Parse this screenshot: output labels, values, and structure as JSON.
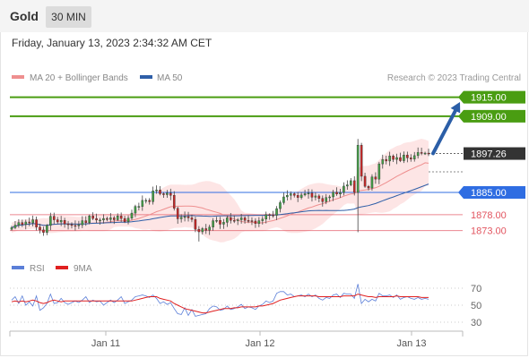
{
  "header": {
    "symbol": "Gold",
    "timeframe": "30 MIN",
    "datetime": "Friday, January 13, 2023 2:34:32 AM CET"
  },
  "legend": {
    "ma20_label": "MA 20 + Bollinger Bands",
    "ma50_label": "MA 50",
    "credit": "Research © 2023 Trading Central",
    "rsi_label": "RSI",
    "rsi_ma_label": "9MA"
  },
  "colors": {
    "target": "#4a9d12",
    "pivot": "#2f6de2",
    "support": "#e25560",
    "current": "#333333",
    "arrow": "#2b5ea7",
    "ma20": "#ee8f8f",
    "ma50": "#2f5fa8",
    "bands": "#fde0e0",
    "candle_up": "#43a047",
    "candle_down": "#c62828",
    "rsi": "#5b7fd8",
    "rsi_ma": "#e02020"
  },
  "chart_data": [
    {
      "type": "candlestick",
      "title": "",
      "ylim": [
        1869.5,
        1918
      ],
      "x_ticks": [
        "Jan 11",
        "Jan 12",
        "Jan 13"
      ],
      "price_levels": [
        {
          "label": "1915.00",
          "value": 1915.0,
          "kind": "target"
        },
        {
          "label": "1909.00",
          "value": 1909.0,
          "kind": "target"
        },
        {
          "label": "1897.26",
          "value": 1897.26,
          "kind": "current"
        },
        {
          "label": "1885.00",
          "value": 1885.0,
          "kind": "pivot"
        },
        {
          "label": "1878.00",
          "value": 1878.0,
          "kind": "support"
        },
        {
          "label": "1873.00",
          "value": 1873.0,
          "kind": "support"
        }
      ],
      "forecast_arrow": {
        "from": 1897.3,
        "to": 1913.5
      },
      "close": [
        1873.9,
        1874.7,
        1875.5,
        1874.9,
        1875.7,
        1875.4,
        1876.4,
        1874.1,
        1873.2,
        1872.4,
        1874.6,
        1877.5,
        1876.4,
        1875.7,
        1876.2,
        1875.1,
        1874.9,
        1874.6,
        1874.5,
        1874.8,
        1876.1,
        1875.5,
        1877.6,
        1876.8,
        1876.3,
        1876.3,
        1876.8,
        1876.5,
        1877.0,
        1876.4,
        1877.6,
        1876.8,
        1875.8,
        1876.9,
        1878.5,
        1880.6,
        1880.6,
        1882.5,
        1882.5,
        1882.1,
        1885.5,
        1885.8,
        1884.6,
        1884.3,
        1884.8,
        1884.1,
        1880.0,
        1876.7,
        1877.2,
        1877.4,
        1877.0,
        1876.5,
        1873.4,
        1872.6,
        1873.6,
        1873.1,
        1874.1,
        1876.1,
        1876.2,
        1875.0,
        1875.6,
        1877.0,
        1876.2,
        1876.1,
        1876.4,
        1877.0,
        1876.2,
        1876.1,
        1876.0,
        1875.2,
        1876.1,
        1876.6,
        1878.0,
        1877.9,
        1877.8,
        1879.9,
        1881.8,
        1883.6,
        1884.1,
        1884.6,
        1884.1,
        1883.4,
        1884.2,
        1884.6,
        1884.8,
        1883.5,
        1883.9,
        1883.1,
        1882.1,
        1883.4,
        1883.6,
        1885.1,
        1884.5,
        1885.0,
        1887.0,
        1887.4,
        1888.7,
        1885.0,
        1899.9,
        1890.1,
        1886.9,
        1886.4,
        1889.9,
        1889.2,
        1894.0,
        1895.4,
        1894.9,
        1896.5,
        1895.4,
        1896.0,
        1895.0,
        1896.8,
        1895.9,
        1895.5,
        1896.6,
        1897.6,
        1897.3,
        1897.4,
        1897.3
      ]
    },
    {
      "type": "line",
      "title": "",
      "ylim": [
        30,
        70
      ],
      "y_ticks": [
        70,
        50,
        30
      ],
      "series": [
        {
          "name": "RSI",
          "values": [
            56,
            60,
            52,
            61,
            50,
            54,
            49,
            61,
            44,
            47,
            52,
            63,
            52,
            53,
            58,
            53,
            51,
            53,
            55,
            53,
            56,
            60,
            53,
            56,
            54,
            55,
            50,
            53,
            56,
            53,
            56,
            60,
            52,
            54,
            56,
            60,
            61,
            62,
            61,
            59,
            62,
            58,
            52,
            54,
            51,
            53,
            46,
            40,
            39,
            47,
            38,
            45,
            37,
            38,
            39,
            40,
            46,
            49,
            48,
            44,
            45,
            49,
            45,
            46,
            48,
            51,
            46,
            48,
            47,
            45,
            49,
            51,
            55,
            53,
            55,
            64,
            66,
            66,
            62,
            63,
            60,
            61,
            62,
            60,
            63,
            60,
            62,
            58,
            56,
            59,
            58,
            62,
            63,
            59,
            64,
            63,
            63,
            58,
            75,
            52,
            57,
            54,
            57,
            55,
            64,
            61,
            61,
            62,
            59,
            62,
            57,
            59,
            60,
            58,
            57,
            59,
            57,
            58,
            57
          ]
        },
        {
          "name": "9MA",
          "values": [
            54,
            55,
            54,
            55,
            54,
            55,
            56,
            55,
            53,
            52,
            53,
            55,
            56,
            55,
            54,
            55,
            55,
            55,
            55,
            55,
            55,
            55,
            55,
            55,
            55,
            55,
            55,
            55,
            55,
            55,
            55,
            55,
            55,
            55,
            55,
            56,
            57,
            58,
            59,
            60,
            60,
            60,
            58,
            57,
            56,
            55,
            52,
            50,
            48,
            46,
            45,
            44,
            43,
            42,
            41,
            41,
            42,
            43,
            44,
            45,
            46,
            46,
            46,
            47,
            47,
            48,
            48,
            48,
            48,
            48,
            49,
            49,
            50,
            51,
            52,
            54,
            56,
            57,
            58,
            59,
            60,
            61,
            61,
            61,
            61,
            61,
            61,
            60,
            60,
            60,
            60,
            60,
            60,
            60,
            61,
            61,
            61,
            61,
            63,
            62,
            61,
            60,
            60,
            59,
            60,
            60,
            60,
            60,
            60,
            61,
            60,
            60,
            60,
            60,
            60,
            60,
            59,
            59,
            59
          ]
        }
      ]
    }
  ]
}
